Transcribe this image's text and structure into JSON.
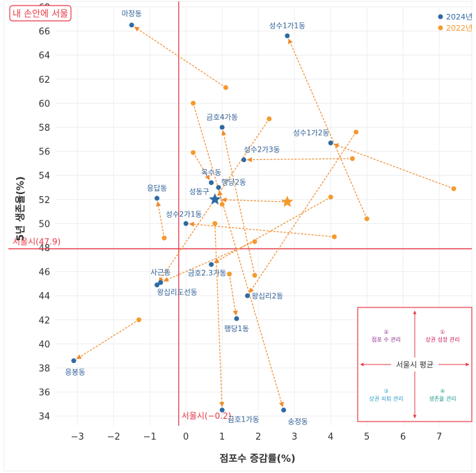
{
  "chart_data": {
    "type": "scatter",
    "title": "",
    "tag": "내 손안에 서울",
    "xlabel": "점포수 증감률(%)",
    "ylabel": "5년 생존율(%)",
    "xlim": [
      -3.6,
      7.9
    ],
    "ylim": [
      33.2,
      68
    ],
    "xticks": [
      -3,
      -2,
      -1,
      0,
      1,
      2,
      3,
      4,
      5,
      6,
      7
    ],
    "yticks": [
      34,
      36,
      38,
      40,
      42,
      44,
      46,
      48,
      50,
      52,
      54,
      56,
      58,
      60,
      62,
      64,
      66,
      68
    ],
    "xtick_labels": [
      "−3",
      "−2",
      "−1",
      "0",
      "1",
      "2",
      "3",
      "4",
      "5",
      "6",
      "7"
    ],
    "grid": true,
    "legend": {
      "position": "top-right",
      "entries": [
        {
          "name": "2024년",
          "color": "#2f6aa3"
        },
        {
          "name": "2022년",
          "color": "#f59a2e"
        }
      ]
    },
    "reference_lines": {
      "vertical": {
        "value": -0.2,
        "label": "서울시(−0.2)",
        "color": "#e63946"
      },
      "horizontal": {
        "value": 47.9,
        "label": "서울시(47.9)",
        "color": "#e63946"
      }
    },
    "points": [
      {
        "name": "마장동",
        "x_2024": -1.5,
        "y_2024": 66.5,
        "x_2022": 1.1,
        "y_2022": 61.3
      },
      {
        "name": "성수1가1동",
        "x_2024": 2.8,
        "y_2024": 65.6,
        "x_2022": 5.0,
        "y_2022": 50.4
      },
      {
        "name": "금호4가동",
        "x_2024": 1.0,
        "y_2024": 58.0,
        "x_2022": 1.9,
        "y_2022": 45.7
      },
      {
        "name": "성수1가2동",
        "x_2024": 4.0,
        "y_2024": 56.7,
        "x_2022": 7.4,
        "y_2022": 52.9
      },
      {
        "name": "성수2가3동",
        "x_2024": 1.6,
        "y_2024": 55.3,
        "x_2022": 4.6,
        "y_2022": 55.4
      },
      {
        "name": "옥수동",
        "x_2024": 0.7,
        "y_2024": 53.4,
        "x_2022": 0.2,
        "y_2022": 55.9
      },
      {
        "name": "행당2동",
        "x_2024": 0.9,
        "y_2024": 53.0,
        "x_2022": 1.0,
        "y_2022": 51.6
      },
      {
        "name": "응답동",
        "x_2024": -0.8,
        "y_2024": 52.1,
        "x_2022": -0.6,
        "y_2022": 48.8
      },
      {
        "name": "성동구",
        "x_2024": 0.8,
        "y_2024": 52.0,
        "x_2022": 2.8,
        "y_2022": 51.8,
        "is_district": true
      },
      {
        "name": "성수2가1동",
        "x_2024": 0.0,
        "y_2024": 50.0,
        "x_2022": 4.1,
        "y_2022": 48.9
      },
      {
        "name": "금호2.3가동",
        "x_2024": 0.7,
        "y_2024": 46.6,
        "x_2022": 4.0,
        "y_2022": 52.2
      },
      {
        "name": "사근동",
        "x_2024": -0.7,
        "y_2024": 45.1,
        "x_2022": 1.9,
        "y_2022": 48.5
      },
      {
        "name": "왕십리도선동",
        "x_2024": -0.8,
        "y_2024": 44.9,
        "x_2022": 2.3,
        "y_2022": 58.7
      },
      {
        "name": "왕십리2동",
        "x_2024": 1.7,
        "y_2024": 44.0,
        "x_2022": 4.7,
        "y_2022": 57.6
      },
      {
        "name": "행당1동",
        "x_2024": 1.4,
        "y_2024": 42.1,
        "x_2022": 1.2,
        "y_2022": 45.8
      },
      {
        "name": "응봉동",
        "x_2024": -3.1,
        "y_2024": 38.6,
        "x_2022": -1.3,
        "y_2022": 42.0
      },
      {
        "name": "금호1가동",
        "x_2024": 1.0,
        "y_2024": 34.5,
        "x_2022": 0.8,
        "y_2022": 50.0
      },
      {
        "name": "송정동",
        "x_2024": 2.7,
        "y_2024": 34.5,
        "x_2022": 0.2,
        "y_2022": 60.0
      }
    ],
    "quadrant_legend": {
      "center_label": "서울시 평균",
      "quadrants": [
        {
          "pos": "top-left",
          "num": "②",
          "label": "점포 수 관리",
          "color": "#8e2a8e"
        },
        {
          "pos": "top-right",
          "num": "①",
          "label": "상권 성장 관리",
          "color": "#c2185b"
        },
        {
          "pos": "bottom-left",
          "num": "③",
          "label": "상권 쇠퇴 관리",
          "color": "#2a9ac8"
        },
        {
          "pos": "bottom-right",
          "num": "④",
          "label": "생존율 관리",
          "color": "#1f9a8a"
        }
      ]
    }
  }
}
